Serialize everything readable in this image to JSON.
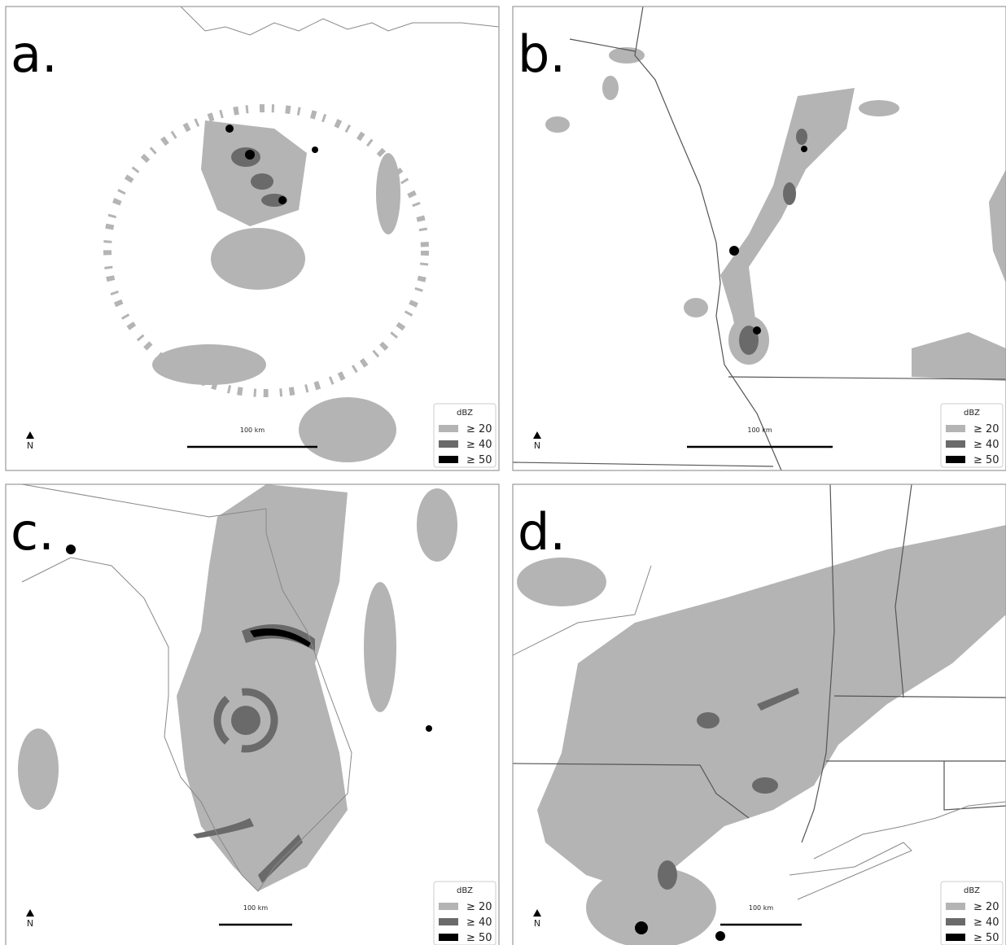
{
  "panels": [
    {
      "label": "a.",
      "legend_title": "dBZ",
      "legend": [
        "≥ 20",
        "≥ 40",
        "≥ 50"
      ],
      "scale": "100 km",
      "north": "N"
    },
    {
      "label": "b.",
      "legend_title": "dBZ",
      "legend": [
        "≥ 20",
        "≥ 40",
        "≥ 50"
      ],
      "scale": "100 km",
      "north": "N"
    },
    {
      "label": "c.",
      "legend_title": "dBZ",
      "legend": [
        "≥ 20",
        "≥ 40",
        "≥ 50"
      ],
      "scale": "100 km",
      "north": "N"
    },
    {
      "label": "d.",
      "legend_title": "dBZ",
      "legend": [
        "≥ 20",
        "≥ 40",
        "≥ 50"
      ],
      "scale": "100 km",
      "north": "N"
    }
  ]
}
